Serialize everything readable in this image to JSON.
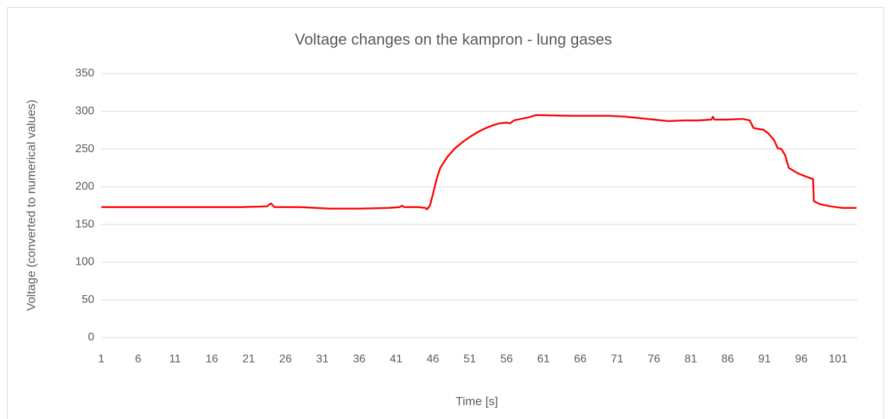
{
  "chart_data": {
    "type": "line",
    "title": "Voltage changes on the kampron - lung gases",
    "xlabel": "Time [s]",
    "ylabel": "Voltage (converted to numerical values)",
    "x": [
      1,
      5,
      10,
      15,
      20,
      23.5,
      24,
      24.5,
      28,
      32,
      36,
      40,
      41.5,
      41.8,
      42.1,
      44,
      45,
      45.2,
      45.6,
      46,
      46.5,
      47,
      48,
      49,
      50,
      51,
      52,
      53,
      54,
      55,
      56,
      56.5,
      57,
      58,
      59,
      60,
      65,
      70,
      72,
      74,
      76,
      78,
      80,
      82,
      83.8,
      84,
      84.2,
      86,
      88,
      89,
      89.5,
      90.5,
      90.8,
      91.5,
      92.3,
      92.8,
      93.3,
      93.8,
      94.3,
      95.5,
      96.5,
      97.6,
      97.7,
      98.5,
      100,
      101.5,
      103.5
    ],
    "series": [
      {
        "color": "#ff0000",
        "values": [
          173,
          173,
          173,
          173,
          173,
          174,
          178,
          173,
          173,
          171,
          171,
          172,
          173,
          175,
          173,
          173,
          172,
          170,
          175,
          190,
          210,
          225,
          240,
          251,
          259,
          266,
          272,
          277,
          281,
          284,
          285,
          284,
          288,
          290,
          292,
          295,
          294,
          294,
          293,
          291,
          289,
          287,
          288,
          288,
          289,
          293,
          289,
          289,
          290,
          288,
          278,
          276,
          276,
          271,
          262,
          251,
          250,
          242,
          225,
          218,
          214,
          210,
          181,
          177,
          174,
          172,
          172
        ]
      }
    ],
    "xlim": [
      1,
      103.6
    ],
    "xticks": [
      1,
      6,
      11,
      16,
      21,
      26,
      31,
      36,
      41,
      46,
      51,
      56,
      61,
      66,
      71,
      76,
      81,
      86,
      91,
      96,
      101
    ],
    "ylim": [
      0,
      350
    ],
    "yticks": [
      0,
      50,
      100,
      150,
      200,
      250,
      300,
      350
    ],
    "grid": true
  }
}
